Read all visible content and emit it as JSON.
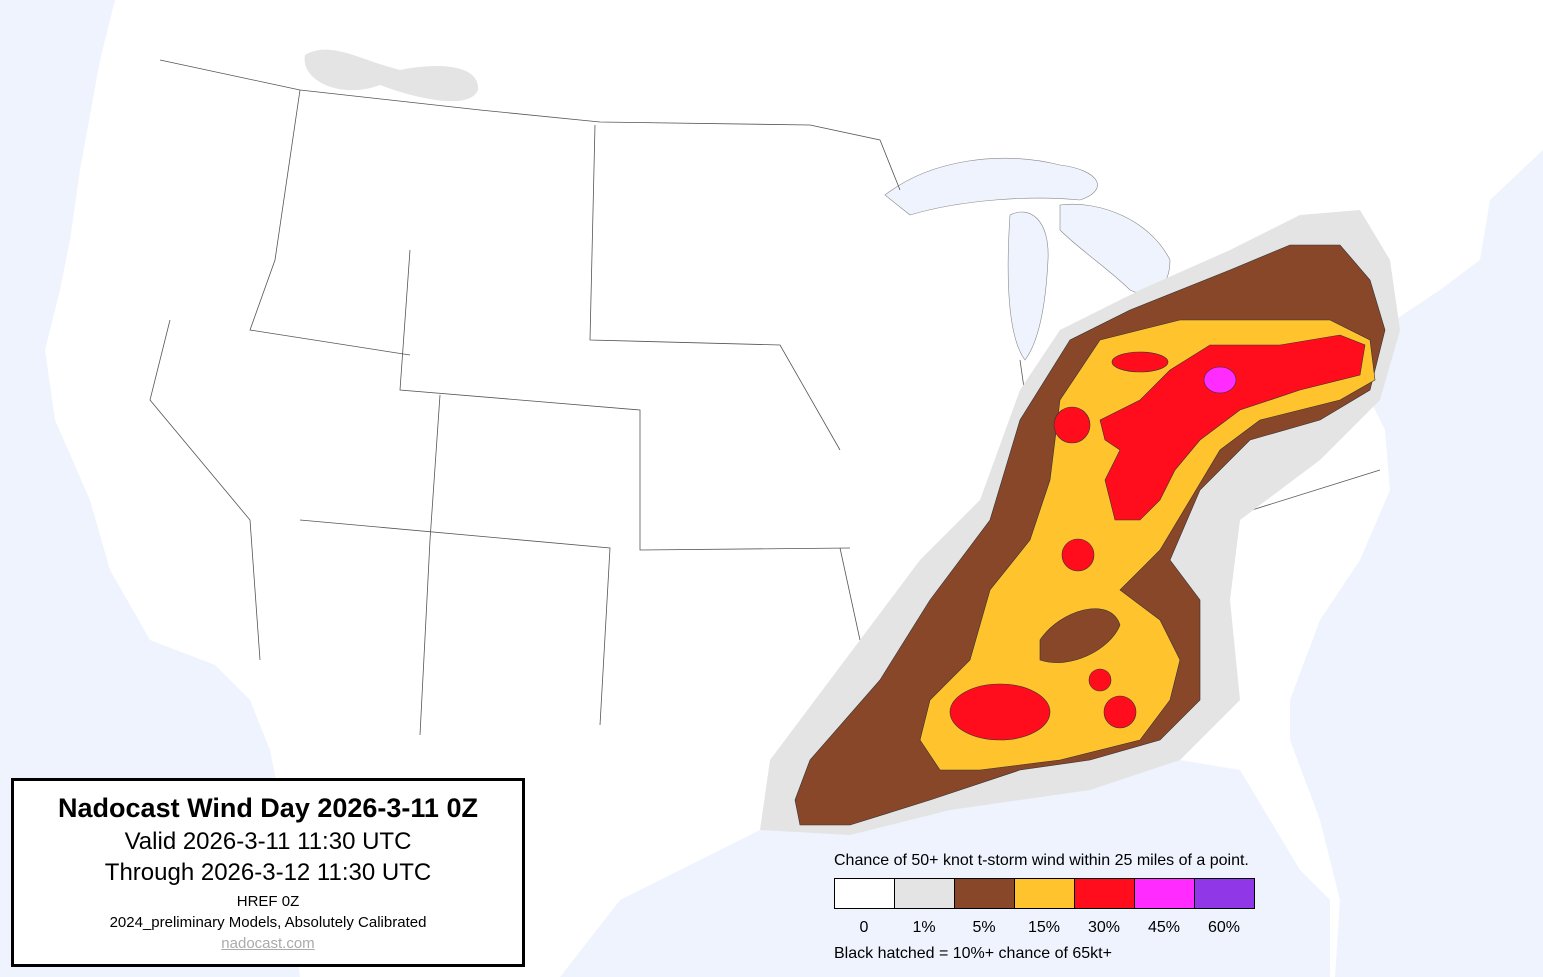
{
  "title": {
    "heading": "Nadocast Wind Day 2026-3-11 0Z",
    "valid": "Valid 2026-3-11 11:30 UTC",
    "through": "Through 2026-3-12 11:30 UTC",
    "model": "HREF 0Z",
    "calibration": "2024_preliminary Models, Absolutely Calibrated",
    "link": "nadocast.com"
  },
  "legend": {
    "caption": "Chance of 50+ knot t-storm wind within 25 miles of a point.",
    "bins": [
      {
        "label": "0",
        "color": "#ffffff"
      },
      {
        "label": "1%",
        "color": "#e4e4e4"
      },
      {
        "label": "5%",
        "color": "#89472a"
      },
      {
        "label": "15%",
        "color": "#ffc42d"
      },
      {
        "label": "30%",
        "color": "#ff0d1d"
      },
      {
        "label": "45%",
        "color": "#ff2bff"
      },
      {
        "label": "60%",
        "color": "#9037e8"
      }
    ],
    "note": "Black hatched = 10%+ chance of 65kt+"
  },
  "colors": {
    "water": "#eef3fe",
    "land": "#ffffff",
    "border": "#555555"
  }
}
